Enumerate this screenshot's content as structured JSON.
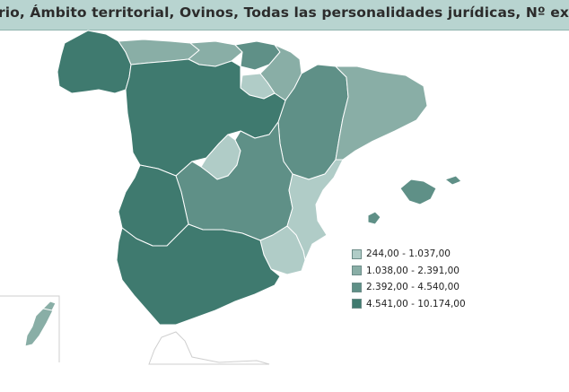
{
  "title": "rio, Ámbito territorial, Ovinos, Todas las personalidades jurídicas, Nº explotaciones",
  "colors": {
    "class1": "#b0ccc7",
    "class2": "#89aea6",
    "class3": "#5f9087",
    "class4": "#3f7a6f",
    "border": "#ffffff",
    "title_bg": "#b8d4d0"
  },
  "legend": {
    "items": [
      {
        "label": "244,00 - 1.037,00",
        "color": "#b0ccc7"
      },
      {
        "label": "1.038,00 - 2.391,00",
        "color": "#89aea6"
      },
      {
        "label": "2.392,00 - 4.540,00",
        "color": "#5f9087"
      },
      {
        "label": "4.541,00 - 10.174,00",
        "color": "#3f7a6f"
      }
    ]
  },
  "regions": [
    {
      "id": "galicia",
      "class": 4
    },
    {
      "id": "asturias",
      "class": 2
    },
    {
      "id": "cantabria",
      "class": 2
    },
    {
      "id": "pais-vasco",
      "class": 3
    },
    {
      "id": "navarra",
      "class": 2
    },
    {
      "id": "la-rioja",
      "class": 1
    },
    {
      "id": "aragon",
      "class": 3
    },
    {
      "id": "cataluna",
      "class": 2
    },
    {
      "id": "castilla-y-leon",
      "class": 4
    },
    {
      "id": "madrid",
      "class": 1
    },
    {
      "id": "castilla-la-mancha",
      "class": 3
    },
    {
      "id": "comunidad-valenciana",
      "class": 1
    },
    {
      "id": "extremadura",
      "class": 4
    },
    {
      "id": "murcia",
      "class": 1
    },
    {
      "id": "andalucia",
      "class": 4
    },
    {
      "id": "baleares-mallorca",
      "class": 3
    },
    {
      "id": "baleares-menorca",
      "class": 3
    },
    {
      "id": "baleares-ibiza",
      "class": 3
    },
    {
      "id": "canarias",
      "class": 2
    }
  ]
}
